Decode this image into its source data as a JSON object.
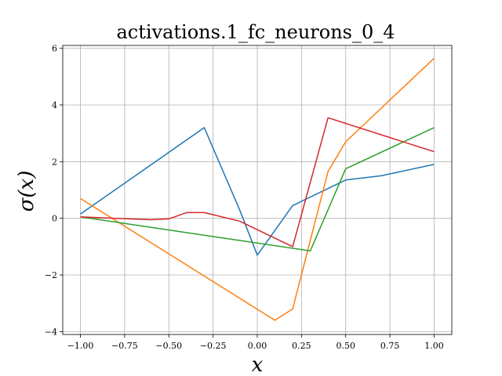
{
  "chart_data": {
    "type": "line",
    "title": "activations.1_fc_neurons_0_4",
    "xlabel": "x",
    "ylabel": "σ(x)",
    "xlim": [
      -1.1,
      1.1
    ],
    "ylim": [
      -4.1,
      6.1
    ],
    "grid": true,
    "xticks": [
      -1.0,
      -0.75,
      -0.5,
      -0.25,
      0.0,
      0.25,
      0.5,
      0.75,
      1.0
    ],
    "xtick_labels": [
      "−1.00",
      "−0.75",
      "−0.50",
      "−0.25",
      "0.00",
      "0.25",
      "0.50",
      "0.75",
      "1.00"
    ],
    "yticks": [
      -4,
      -2,
      0,
      2,
      4,
      6
    ],
    "ytick_labels": [
      "−4",
      "−2",
      "0",
      "2",
      "4",
      "6"
    ],
    "series": [
      {
        "color": "#1f77b4",
        "x": [
          -1.0,
          -0.3,
          -0.1,
          0.0,
          0.2,
          0.5,
          0.7,
          1.0
        ],
        "y": [
          0.15,
          3.2,
          0.3,
          -1.3,
          0.45,
          1.35,
          1.5,
          1.9
        ]
      },
      {
        "color": "#ff7f0e",
        "x": [
          -1.0,
          0.1,
          0.2,
          0.4,
          0.5,
          1.0
        ],
        "y": [
          0.7,
          -3.6,
          -3.2,
          1.65,
          2.7,
          5.65
        ]
      },
      {
        "color": "#2ca02c",
        "x": [
          -1.0,
          0.3,
          0.5,
          1.0
        ],
        "y": [
          0.05,
          -1.15,
          1.75,
          3.2
        ]
      },
      {
        "color": "#d62728",
        "x": [
          -1.0,
          -0.8,
          -0.6,
          -0.5,
          -0.4,
          -0.3,
          -0.1,
          0.2,
          0.4,
          1.0
        ],
        "y": [
          0.05,
          0.0,
          -0.05,
          -0.02,
          0.2,
          0.2,
          -0.1,
          -1.0,
          3.55,
          2.35
        ]
      }
    ]
  }
}
